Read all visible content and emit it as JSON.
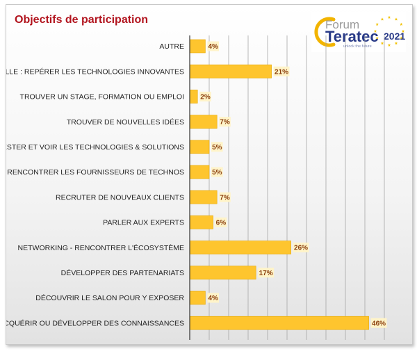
{
  "logo": {
    "line1": "Forum",
    "line2": "Teratec",
    "year": "2021",
    "tagline": "unlock the future",
    "colors": {
      "arc": "#f2b400",
      "text": "#2a3b88",
      "stars": "#f2c200"
    }
  },
  "chart_data": {
    "type": "bar",
    "orientation": "horizontal",
    "title": "Objectifs de participation",
    "categories": [
      "AUTRE",
      "VEILLE : REPÉRER LES TECHNOLOGIES INNOVANTES",
      "TROUVER UN STAGE, FORMATION OU EMPLOI",
      "TROUVER DE NOUVELLES IDÉES",
      "TESTER ET VOIR LES TECHNOLOGIES & SOLUTIONS",
      "RENCONTRER LES FOURNISSEURS DE TECHNOS",
      "RECRUTER DE NOUVEAUX CLIENTS",
      "PARLER AUX EXPERTS",
      "NETWORKING - RENCONTRER L'ÉCOSYSTÈME",
      "DÉVELOPPER DES PARTENARIATS",
      "DÉCOUVRIR LE SALON POUR Y EXPOSER",
      "ACQUÉRIR OU DÉVELOPPER DES CONNAISSANCES"
    ],
    "values": [
      4,
      21,
      2,
      7,
      5,
      5,
      7,
      6,
      26,
      17,
      4,
      46
    ],
    "data_labels": [
      "4%",
      "21%",
      "2%",
      "7%",
      "5%",
      "5%",
      "7%",
      "6%",
      "26%",
      "17%",
      "4%",
      "46%"
    ],
    "xlim": [
      0,
      50
    ],
    "x_gridline_step": 5,
    "grid": true,
    "legend": "none",
    "colors": {
      "bar": "#fec52e",
      "bar_edge": "#e6a800",
      "label_text": "#8a3d0c",
      "label_box": "#fff4c9",
      "title": "#b2141e",
      "grid": "#a6a6a6"
    }
  }
}
